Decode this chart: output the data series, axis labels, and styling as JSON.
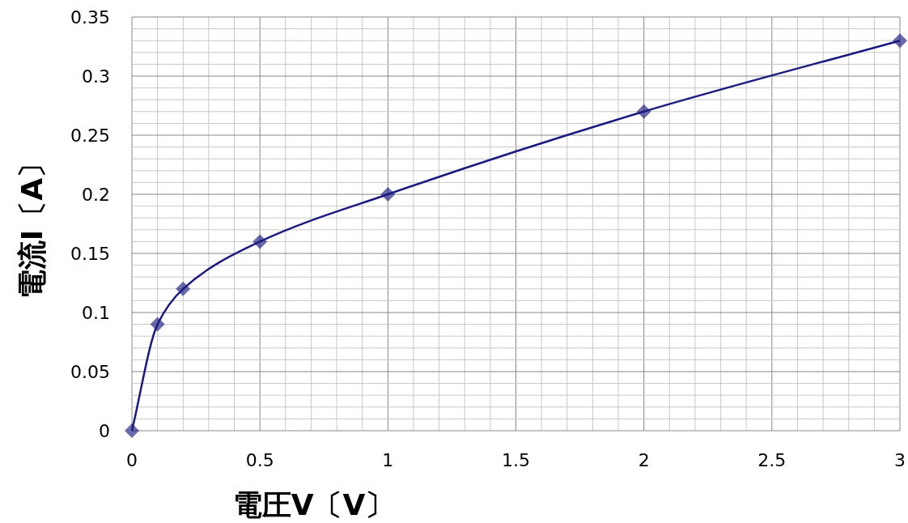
{
  "chart_data": {
    "type": "line",
    "xlabel": "電圧V〔V〕",
    "ylabel": "電流I〔A〕",
    "x": [
      0,
      0.1,
      0.2,
      0.5,
      1,
      2,
      3
    ],
    "series": [
      {
        "color": "#1a1a80",
        "values": [
          0,
          0.09,
          0.12,
          0.16,
          0.2,
          0.27,
          0.33
        ]
      }
    ],
    "xlim": [
      0,
      3
    ],
    "xticks": [
      0,
      0.5,
      1,
      1.5,
      2,
      2.5,
      3
    ],
    "ylim": [
      0,
      0.35
    ],
    "yticks": [
      0,
      0.05,
      0.1,
      0.15,
      0.2,
      0.25,
      0.3,
      0.35
    ],
    "grid": true,
    "marker": "diamond",
    "line_style": "solid"
  }
}
